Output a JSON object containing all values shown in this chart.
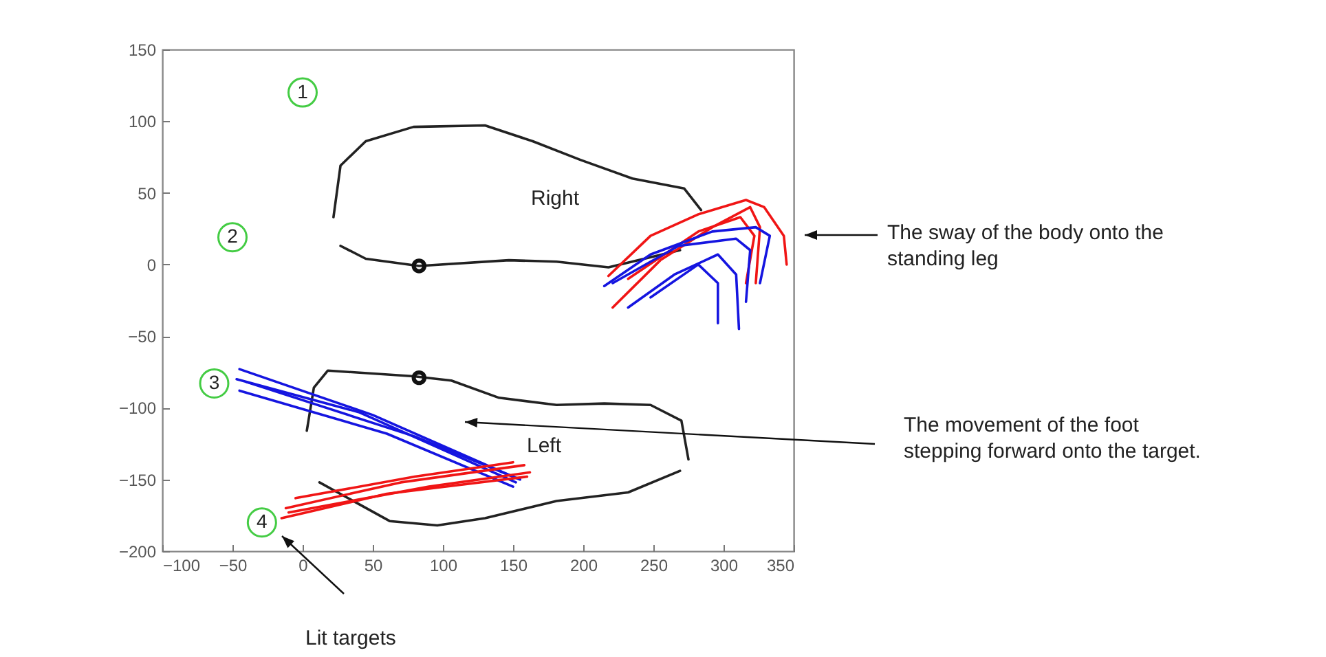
{
  "chart_data": {
    "type": "line",
    "xlim": [
      -100,
      350
    ],
    "ylim": [
      -200,
      150
    ],
    "xticks": [
      -100,
      -50,
      0,
      50,
      100,
      150,
      200,
      250,
      300,
      350
    ],
    "yticks": [
      -200,
      -150,
      -100,
      -50,
      0,
      50,
      100,
      150
    ],
    "grid": false,
    "series": [
      {
        "color": "#222222",
        "x": [
          22,
          27,
          45,
          79,
          130,
          164,
          198,
          235,
          272,
          284
        ],
        "values": [
          33,
          69,
          86,
          96,
          97,
          86,
          73,
          60,
          53,
          38
        ]
      },
      {
        "color": "#222222",
        "x": [
          27,
          45,
          83,
          147,
          181,
          218,
          269
        ],
        "values": [
          13,
          4,
          -1,
          3,
          2,
          -2,
          10
        ]
      },
      {
        "color": "#222222",
        "x": [
          3,
          8,
          18,
          79,
          106,
          140,
          181,
          215,
          248,
          270,
          275
        ],
        "values": [
          -116,
          -86,
          -74,
          -78,
          -81,
          -93,
          -98,
          -97,
          -98,
          -109,
          -136
        ]
      },
      {
        "color": "#222222",
        "x": [
          12,
          62,
          96,
          130,
          181,
          232,
          269
        ],
        "values": [
          -152,
          -179,
          -182,
          -177,
          -165,
          -159,
          -144
        ]
      },
      {
        "color": "#1515e0",
        "x": [
          -45,
          50,
          150
        ],
        "values": [
          -73,
          -105,
          -148
        ]
      },
      {
        "color": "#1515e0",
        "x": [
          -47,
          40,
          152
        ],
        "values": [
          -80,
          -103,
          -152
        ]
      },
      {
        "color": "#1515e0",
        "x": [
          -45,
          60,
          150
        ],
        "values": [
          -88,
          -118,
          -155
        ]
      },
      {
        "color": "#1515e0",
        "x": [
          -40,
          80,
          155
        ],
        "values": [
          -82,
          -120,
          -150
        ]
      },
      {
        "color": "#f01515",
        "x": [
          -15,
          60,
          160
        ],
        "values": [
          -177,
          -160,
          -148
        ]
      },
      {
        "color": "#f01515",
        "x": [
          -12,
          70,
          158
        ],
        "values": [
          -170,
          -152,
          -140
        ]
      },
      {
        "color": "#f01515",
        "x": [
          -5,
          80,
          150
        ],
        "values": [
          -163,
          -148,
          -138
        ]
      },
      {
        "color": "#f01515",
        "x": [
          -10,
          90,
          162
        ],
        "values": [
          -173,
          -155,
          -145
        ]
      },
      {
        "color": "#f01515",
        "x": [
          218,
          248,
          282,
          316,
          329,
          343,
          345
        ],
        "values": [
          -8,
          20,
          35,
          45,
          40,
          20,
          0
        ]
      },
      {
        "color": "#f01515",
        "x": [
          221,
          255,
          292,
          319,
          326,
          323
        ],
        "values": [
          -30,
          3,
          26,
          40,
          26,
          -13
        ]
      },
      {
        "color": "#f01515",
        "x": [
          232,
          282,
          312,
          322,
          316
        ],
        "values": [
          -10,
          23,
          33,
          20,
          -13
        ]
      },
      {
        "color": "#1515e0",
        "x": [
          215,
          248,
          292,
          323,
          333,
          326
        ],
        "values": [
          -15,
          7,
          23,
          26,
          20,
          -13
        ]
      },
      {
        "color": "#1515e0",
        "x": [
          232,
          265,
          296,
          309,
          311
        ],
        "values": [
          -30,
          -7,
          7,
          -7,
          -45
        ]
      },
      {
        "color": "#1515e0",
        "x": [
          248,
          282,
          296,
          296
        ],
        "values": [
          -23,
          0,
          -13,
          -41
        ]
      },
      {
        "color": "#1515e0",
        "x": [
          221,
          268,
          309,
          319,
          316
        ],
        "values": [
          -13,
          13,
          18,
          10,
          -26
        ]
      },
      {
        "type": "scatter",
        "marker": "circle",
        "color": "#44cc44",
        "x": [
          0,
          -50,
          -63,
          -29
        ],
        "values": [
          120,
          19,
          -83,
          -180
        ]
      },
      {
        "type": "scatter",
        "marker": "circle",
        "color": "#111111",
        "x": [
          83,
          83
        ],
        "values": [
          -1,
          -79
        ]
      }
    ],
    "annotations": [
      {
        "text": "1",
        "x": 0,
        "y": 120
      },
      {
        "text": "2",
        "x": -50,
        "y": 19
      },
      {
        "text": "3",
        "x": -63,
        "y": -83
      },
      {
        "text": "4",
        "x": -29,
        "y": -180
      },
      "Right",
      "Left",
      "The sway of the body onto the standing leg",
      "The movement of the foot stepping forward onto the target.",
      "Lit targets"
    ]
  }
}
